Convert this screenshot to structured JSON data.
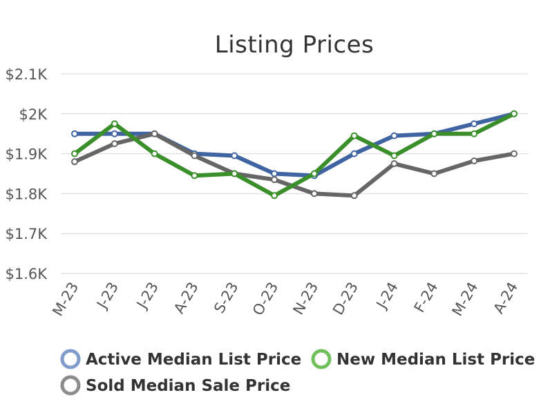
{
  "chart_data": {
    "type": "line",
    "title": "Listing Prices",
    "xlabel": "",
    "ylabel": "",
    "categories": [
      "M-23",
      "J-23",
      "J-23",
      "A-23",
      "S-23",
      "O-23",
      "N-23",
      "D-23",
      "J-24",
      "F-24",
      "M-24",
      "A-24"
    ],
    "ylim": [
      1600,
      2100
    ],
    "yticks": [
      {
        "value": 1600,
        "label": "$1.6K"
      },
      {
        "value": 1700,
        "label": "$1.7K"
      },
      {
        "value": 1800,
        "label": "$1.8K"
      },
      {
        "value": 1900,
        "label": "$1.9K"
      },
      {
        "value": 2000,
        "label": "$2K"
      },
      {
        "value": 2100,
        "label": "$2.1K"
      }
    ],
    "grid": true,
    "legend_position": "bottom",
    "series": [
      {
        "name": "Active Median List Price",
        "color": "#3f64a1",
        "legend_color": "#7f9ccc",
        "values": [
          1950,
          1950,
          1950,
          1900,
          1895,
          1850,
          1845,
          1900,
          1945,
          1950,
          1975,
          2000
        ]
      },
      {
        "name": "Sold Median Sale Price",
        "color": "#666666",
        "legend_color": "#8c8c8c",
        "values": [
          1880,
          1925,
          1950,
          1895,
          1850,
          1835,
          1800,
          1795,
          1875,
          1850,
          1882,
          1900
        ]
      },
      {
        "name": "New Median List Price",
        "color": "#3a8f2a",
        "legend_color": "#6fbf5a",
        "values": [
          1900,
          1975,
          1900,
          1845,
          1850,
          1795,
          1850,
          1945,
          1895,
          1950,
          1950,
          2000
        ]
      }
    ]
  }
}
